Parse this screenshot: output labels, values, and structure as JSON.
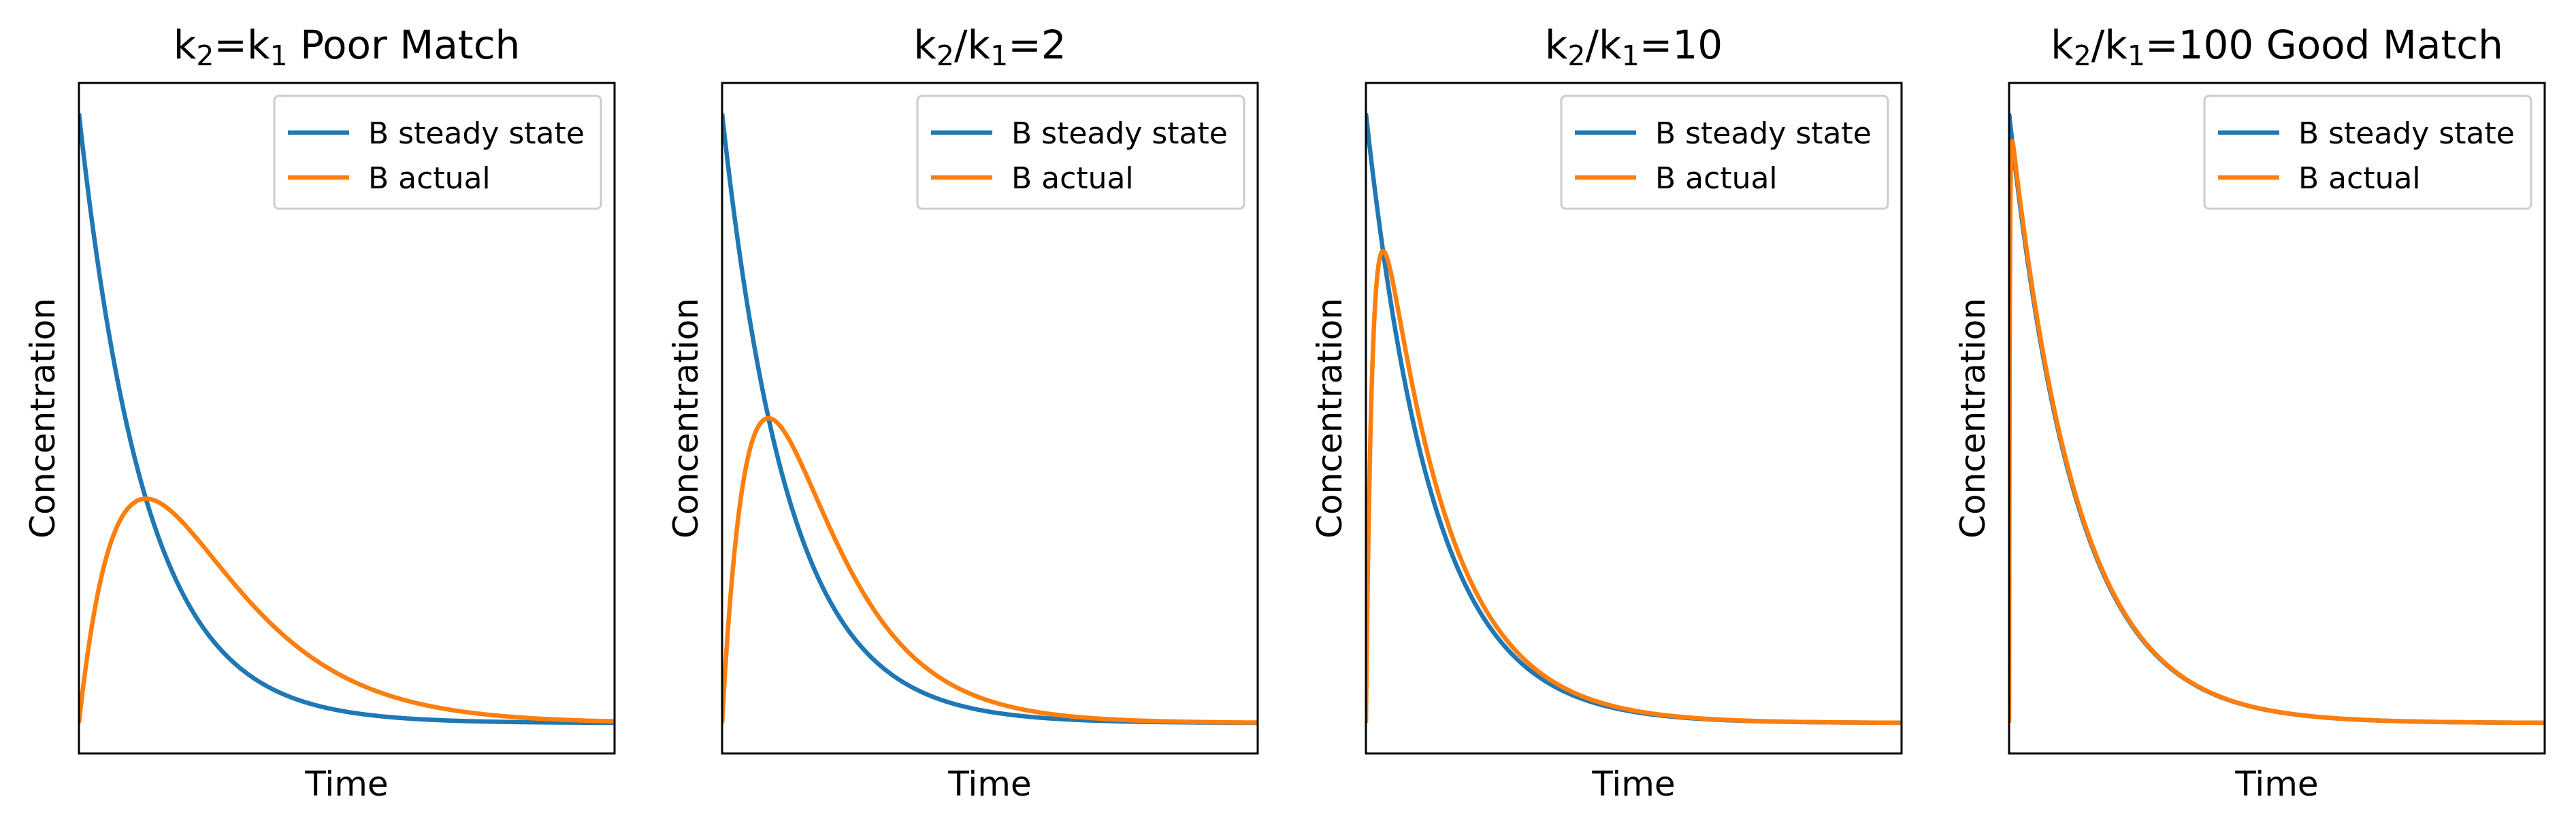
{
  "colors": {
    "steady": "#1f77b4",
    "actual": "#ff7f0e",
    "frame": "#000000",
    "legend_border": "#cccccc"
  },
  "chart_data": [
    {
      "type": "line",
      "title_parts": [
        {
          "t": "k",
          "sub": false
        },
        {
          "t": "2",
          "sub": true
        },
        {
          "t": "=k",
          "sub": false
        },
        {
          "t": "1",
          "sub": true
        },
        {
          "t": " Poor Match",
          "sub": false
        }
      ],
      "ratio": 1,
      "xlabel": "Time",
      "ylabel": "Concentration",
      "xlim": [
        0,
        8
      ],
      "ylim": [
        -0.05,
        1.05
      ],
      "grid": false,
      "legend_loc": "upper right",
      "series": [
        {
          "name": "B steady state",
          "color_key": "steady",
          "x": [
            0,
            0.2,
            0.4,
            0.6,
            0.8,
            1.0,
            1.2,
            1.5,
            2.0,
            2.5,
            3.0,
            3.5,
            4.0,
            5.0,
            6.0,
            7.0,
            8.0
          ],
          "y": [
            1.0,
            0.82,
            0.67,
            0.549,
            0.449,
            0.368,
            0.301,
            0.223,
            0.135,
            0.082,
            0.05,
            0.03,
            0.018,
            0.007,
            0.002,
            0.001,
            0.0
          ]
        },
        {
          "name": "B actual",
          "color_key": "actual",
          "x": [
            0,
            0.2,
            0.4,
            0.6,
            0.8,
            1.0,
            1.2,
            1.5,
            2.0,
            2.5,
            3.0,
            3.5,
            4.0,
            5.0,
            6.0,
            7.0,
            8.0
          ],
          "y": [
            0.0,
            0.164,
            0.268,
            0.329,
            0.359,
            0.368,
            0.361,
            0.335,
            0.271,
            0.205,
            0.149,
            0.106,
            0.073,
            0.034,
            0.015,
            0.006,
            0.003
          ]
        }
      ]
    },
    {
      "type": "line",
      "title_parts": [
        {
          "t": "k",
          "sub": false
        },
        {
          "t": "2",
          "sub": true
        },
        {
          "t": "/k",
          "sub": false
        },
        {
          "t": "1",
          "sub": true
        },
        {
          "t": "=2",
          "sub": false
        }
      ],
      "ratio": 2,
      "xlabel": "Time",
      "ylabel": "Concentration",
      "xlim": [
        0,
        8
      ],
      "ylim": [
        -0.05,
        1.05
      ],
      "grid": false,
      "legend_loc": "upper right",
      "series": [
        {
          "name": "B steady state",
          "color_key": "steady",
          "x": [
            0,
            0.2,
            0.4,
            0.6,
            0.8,
            1.0,
            1.2,
            1.5,
            2.0,
            2.5,
            3.0,
            3.5,
            4.0,
            5.0,
            6.0,
            7.0,
            8.0
          ],
          "y": [
            1.0,
            0.82,
            0.67,
            0.549,
            0.449,
            0.368,
            0.301,
            0.223,
            0.135,
            0.082,
            0.05,
            0.03,
            0.018,
            0.007,
            0.002,
            0.001,
            0.0
          ]
        },
        {
          "name": "B actual",
          "color_key": "actual",
          "x": [
            0,
            0.2,
            0.4,
            0.6,
            0.8,
            1.0,
            1.2,
            1.5,
            2.0,
            2.5,
            3.0,
            3.5,
            4.0,
            5.0,
            6.0,
            7.0,
            8.0
          ],
          "y": [
            0.0,
            0.297,
            0.44,
            0.497,
            0.504,
            0.465,
            0.41,
            0.323,
            0.2,
            0.119,
            0.07,
            0.042,
            0.025,
            0.009,
            0.003,
            0.001,
            0.0
          ]
        }
      ]
    },
    {
      "type": "line",
      "title_parts": [
        {
          "t": "k",
          "sub": false
        },
        {
          "t": "2",
          "sub": true
        },
        {
          "t": "/k",
          "sub": false
        },
        {
          "t": "1",
          "sub": true
        },
        {
          "t": "=10",
          "sub": false
        }
      ],
      "ratio": 10,
      "xlabel": "Time",
      "ylabel": "Concentration",
      "xlim": [
        0,
        8
      ],
      "ylim": [
        -0.05,
        1.05
      ],
      "grid": false,
      "legend_loc": "upper right",
      "series": [
        {
          "name": "B steady state",
          "color_key": "steady",
          "x": [
            0,
            0.2,
            0.4,
            0.6,
            0.8,
            1.0,
            1.2,
            1.5,
            2.0,
            2.5,
            3.0,
            3.5,
            4.0,
            5.0,
            6.0,
            7.0,
            8.0
          ],
          "y": [
            1.0,
            0.82,
            0.67,
            0.549,
            0.449,
            0.368,
            0.301,
            0.223,
            0.135,
            0.082,
            0.05,
            0.03,
            0.018,
            0.007,
            0.002,
            0.001,
            0.0
          ]
        },
        {
          "name": "B actual",
          "color_key": "actual",
          "x": [
            0,
            0.05,
            0.1,
            0.2,
            0.3,
            0.4,
            0.6,
            0.8,
            1.0,
            1.5,
            2.0,
            2.5,
            3.0,
            4.0,
            5.0,
            6.0,
            8.0
          ],
          "y": [
            0.0,
            0.434,
            0.64,
            0.778,
            0.772,
            0.726,
            0.608,
            0.499,
            0.409,
            0.248,
            0.15,
            0.091,
            0.055,
            0.02,
            0.007,
            0.003,
            0.0
          ]
        }
      ]
    },
    {
      "type": "line",
      "title_parts": [
        {
          "t": "k",
          "sub": false
        },
        {
          "t": "2",
          "sub": true
        },
        {
          "t": "/k",
          "sub": false
        },
        {
          "t": "1",
          "sub": true
        },
        {
          "t": "=100 Good Match",
          "sub": false
        }
      ],
      "ratio": 100,
      "xlabel": "Time",
      "ylabel": "Concentration",
      "xlim": [
        0,
        8
      ],
      "ylim": [
        -0.05,
        1.05
      ],
      "grid": false,
      "legend_loc": "upper right",
      "series": [
        {
          "name": "B steady state",
          "color_key": "steady",
          "x": [
            0,
            0.2,
            0.4,
            0.6,
            0.8,
            1.0,
            1.2,
            1.5,
            2.0,
            2.5,
            3.0,
            3.5,
            4.0,
            5.0,
            6.0,
            7.0,
            8.0
          ],
          "y": [
            1.0,
            0.82,
            0.67,
            0.549,
            0.449,
            0.368,
            0.301,
            0.223,
            0.135,
            0.082,
            0.05,
            0.03,
            0.018,
            0.007,
            0.002,
            0.001,
            0.0
          ]
        },
        {
          "name": "B actual",
          "color_key": "actual",
          "x": [
            0,
            0.005,
            0.01,
            0.02,
            0.05,
            0.1,
            0.2,
            0.4,
            0.6,
            0.8,
            1.0,
            1.5,
            2.0,
            3.0,
            4.0,
            6.0,
            8.0
          ],
          "y": [
            0.0,
            0.391,
            0.625,
            0.853,
            0.96,
            0.914,
            0.827,
            0.677,
            0.554,
            0.454,
            0.372,
            0.225,
            0.137,
            0.05,
            0.019,
            0.003,
            0.0
          ]
        }
      ]
    }
  ]
}
